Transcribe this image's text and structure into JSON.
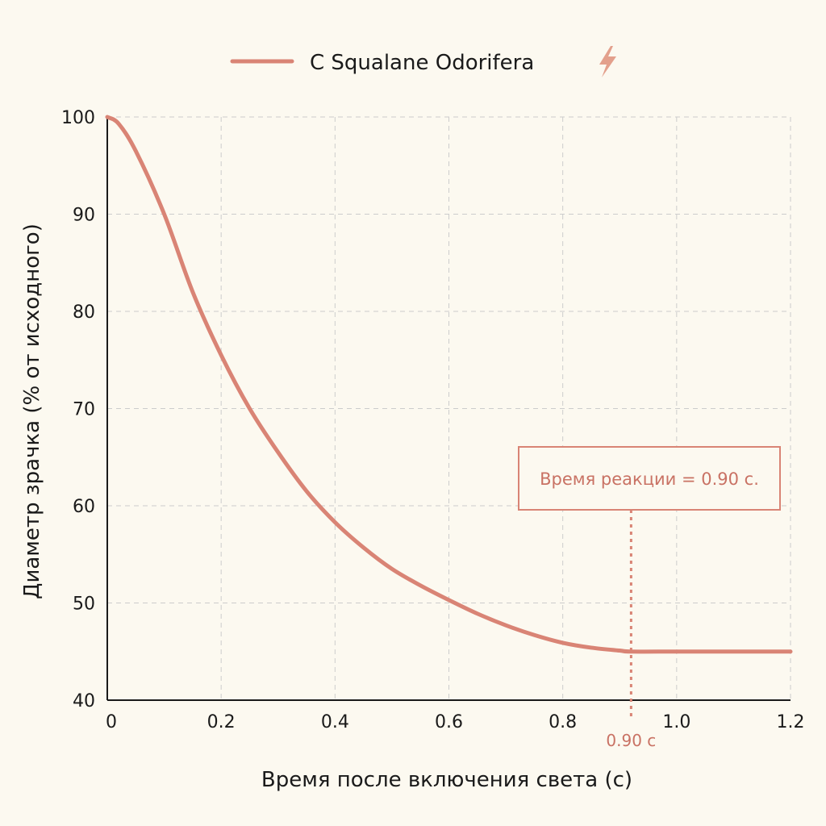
{
  "chart_data": {
    "type": "line",
    "xlabel": "Время после включения света (с)",
    "ylabel": "Диаметр зрачка (% от исходного)",
    "xlim": [
      0,
      1.2
    ],
    "ylim": [
      40,
      100
    ],
    "x_ticks": [
      0,
      0.2,
      0.4,
      0.6,
      0.8,
      1.0,
      1.2
    ],
    "x_tick_labels": [
      "0",
      "0.2",
      "0.4",
      "0.6",
      "0.8",
      "1.0",
      "1.2"
    ],
    "y_ticks": [
      40,
      50,
      60,
      70,
      80,
      90,
      100
    ],
    "y_tick_labels": [
      "40",
      "50",
      "60",
      "70",
      "80",
      "90",
      "100"
    ],
    "grid": true,
    "legend_position": "top-center",
    "series": [
      {
        "name": "C Squalane Odorifera",
        "color": "#d98475",
        "x": [
          0,
          0.02,
          0.05,
          0.1,
          0.15,
          0.2,
          0.25,
          0.3,
          0.35,
          0.4,
          0.45,
          0.5,
          0.55,
          0.6,
          0.65,
          0.7,
          0.75,
          0.8,
          0.85,
          0.9,
          0.92,
          1.0,
          1.1,
          1.2
        ],
        "y": [
          100,
          99.3,
          96.5,
          90.0,
          82.0,
          75.5,
          70.0,
          65.5,
          61.5,
          58.3,
          55.7,
          53.5,
          51.8,
          50.3,
          48.9,
          47.7,
          46.7,
          45.9,
          45.4,
          45.1,
          45.0,
          45.0,
          45.0,
          45.0
        ]
      }
    ],
    "annotation": {
      "text": "Время реакции = 0.90 с.",
      "x": 0.92,
      "marker_label": "0.90 с"
    }
  },
  "colors": {
    "background": "#fcf9f0",
    "accent": "#d98475",
    "grid": "#cccccc",
    "axis": "#1a1a1a"
  },
  "legend_icon": "lightning-icon"
}
